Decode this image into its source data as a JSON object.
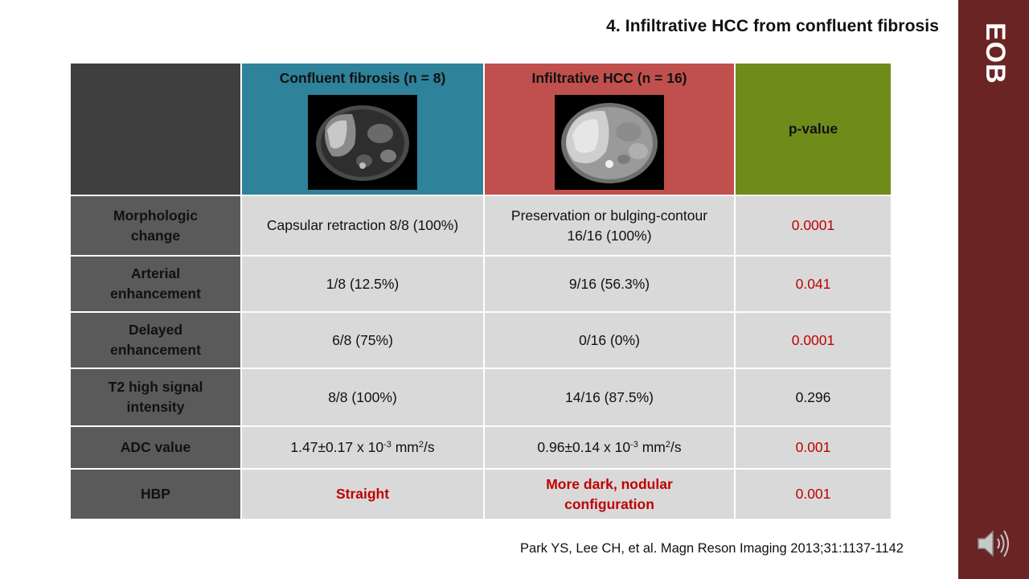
{
  "slide": {
    "title": "4. Infiltrative HCC from confluent fibrosis",
    "side_label": "EOB",
    "citation": "Park YS, Lee CH, et al. Magn Reson Imaging  2013;31:1137-1142",
    "speaker_icon": "speaker-icon"
  },
  "table": {
    "headers": {
      "corner": "",
      "col1": "Confluent fibrosis (n = 8)",
      "col2": "Infiltrative HCC (n = 16)",
      "col3": "p-value"
    },
    "images": {
      "col1_alt": "mri-scan-confluent-fibrosis",
      "col2_alt": "mri-scan-infiltrative-hcc"
    },
    "rows": [
      {
        "label_line1": "Morphologic",
        "label_line2": "change",
        "col1": "Capsular retraction 8/8 (100%)",
        "col2_line1": "Preservation or bulging-contour",
        "col2_line2": "16/16 (100%)",
        "pvalue": "0.0001"
      },
      {
        "label_line1": "Arterial",
        "label_line2": "enhancement",
        "col1": "1/8 (12.5%)",
        "col2": "9/16 (56.3%)",
        "pvalue": "0.041"
      },
      {
        "label_line1": "Delayed",
        "label_line2": "enhancement",
        "col1": "6/8 (75%)",
        "col2": "0/16 (0%)",
        "pvalue": "0.0001"
      },
      {
        "label_line1": "T2 high signal",
        "label_line2": "intensity",
        "col1": "8/8 (100%)",
        "col2": "14/16 (87.5%)",
        "pvalue": "0.296"
      },
      {
        "label": "ADC value",
        "col1_base": "1.47",
        "col1_pm": "±",
        "col1_sd": "0.17 x 10",
        "col1_exp": "-3",
        "col1_unit": " mm",
        "col1_unit_exp": "2",
        "col1_tail": "/s",
        "col2_base": "0.96",
        "col2_pm": "±",
        "col2_sd": "0.14 x 10",
        "col2_exp": "-3",
        "col2_unit": " mm",
        "col2_unit_exp": "2",
        "col2_tail": "/s",
        "pvalue": "0.001"
      },
      {
        "label": "HBP",
        "col1": "Straight",
        "col2_line1": "More dark, nodular",
        "col2_line2": "configuration",
        "pvalue": "0.001"
      }
    ]
  },
  "colors": {
    "header_fibrosis": "#2e8299",
    "header_hcc": "#c0504d",
    "header_pvalue": "#6f8c1b",
    "row_label_bg": "#5a5a5a",
    "cell_bg": "#d9d9d9",
    "significant_text": "#c00000",
    "side_band": "#6b2424"
  }
}
